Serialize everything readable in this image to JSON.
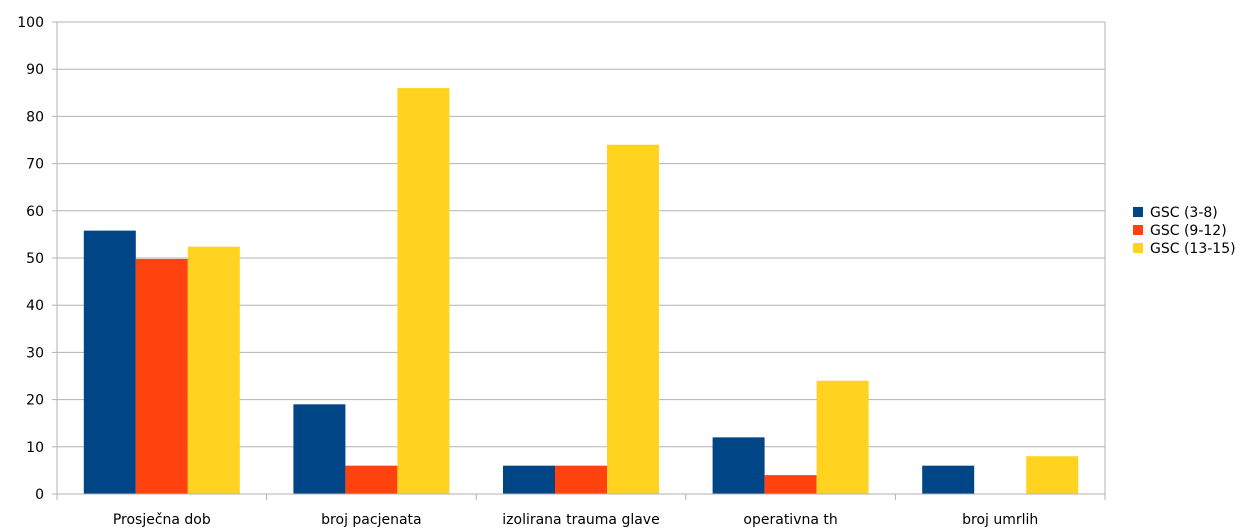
{
  "chart_data": {
    "type": "bar",
    "categories": [
      "Prosječna dob",
      "broj pacjenata",
      "izolirana trauma glave",
      "operativna th",
      "broj umrlih"
    ],
    "series": [
      {
        "name": "GSC (3-8)",
        "color": "#004586",
        "values": [
          55.8,
          19,
          6,
          12,
          6
        ]
      },
      {
        "name": "GSC (9-12)",
        "color": "#ff420e",
        "values": [
          49.8,
          6,
          6,
          4,
          0
        ]
      },
      {
        "name": "GSC (13-15)",
        "color": "#ffd320",
        "values": [
          52.4,
          86,
          74,
          24,
          8
        ]
      }
    ],
    "ylim": [
      0,
      100
    ],
    "yticks": [
      "0",
      "10",
      "20",
      "30",
      "40",
      "50",
      "60",
      "70",
      "80",
      "90",
      "100"
    ],
    "grid": true,
    "legend": "right"
  }
}
